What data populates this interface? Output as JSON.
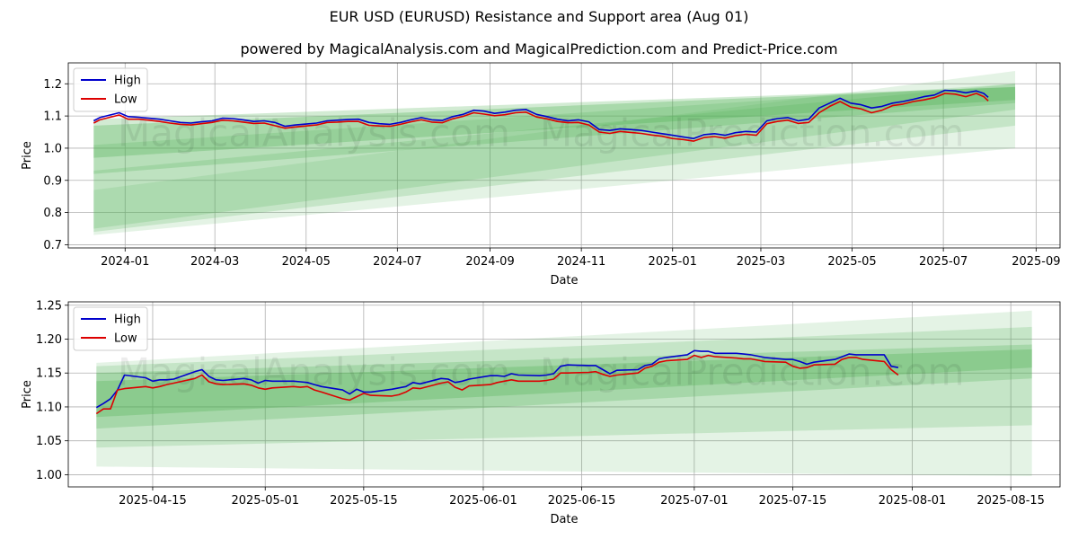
{
  "title": "EUR USD (EURUSD) Resistance and Support area (Aug 01)",
  "subtitle": "powered by MagicalAnalysis.com and MagicalPrediction.com and Predict-Price.com",
  "watermarks": [
    "MagicalAnalysis.com",
    "MagicalPrediction.com"
  ],
  "colors": {
    "high": "#0000cc",
    "low": "#dd0000",
    "band": "#4caf50",
    "grid": "#b0b0b0"
  },
  "chart_data": [
    {
      "type": "line",
      "xlabel": "Date",
      "ylabel": "Price",
      "xlim": [
        "2023-11-24",
        "2025-09-17"
      ],
      "ylim": [
        0.69,
        1.265
      ],
      "x_ticks": [
        "2024-01",
        "2024-03",
        "2024-05",
        "2024-07",
        "2024-09",
        "2024-11",
        "2025-01",
        "2025-03",
        "2025-05",
        "2025-07",
        "2025-09"
      ],
      "y_ticks": [
        "0.7",
        "0.8",
        "0.9",
        "1.0",
        "1.1",
        "1.2"
      ],
      "grid": true,
      "legend": "top-left",
      "legend_entries": [
        "High",
        "Low"
      ],
      "bands_start": "2023-12-11",
      "bands_end": "2025-08-18",
      "bands": [
        {
          "y0_low": 0.73,
          "y0_high": 0.87,
          "y1_low": 1.0,
          "y1_high": 1.24,
          "opacity": 0.15
        },
        {
          "y0_low": 0.74,
          "y0_high": 0.93,
          "y1_low": 1.07,
          "y1_high": 1.2,
          "opacity": 0.2
        },
        {
          "y0_low": 0.75,
          "y0_high": 1.01,
          "y1_low": 1.12,
          "y1_high": 1.2,
          "opacity": 0.2
        },
        {
          "y0_low": 0.92,
          "y0_high": 1.09,
          "y1_low": 1.14,
          "y1_high": 1.19,
          "opacity": 0.25
        },
        {
          "y0_low": 0.97,
          "y0_high": 1.07,
          "y1_low": 1.15,
          "y1_high": 1.19,
          "opacity": 0.3
        }
      ],
      "series": [
        {
          "name": "High",
          "x": [
            "2023-12-11",
            "2023-12-15",
            "2023-12-22",
            "2023-12-28",
            "2024-01-03",
            "2024-01-10",
            "2024-01-17",
            "2024-01-24",
            "2024-01-31",
            "2024-02-07",
            "2024-02-14",
            "2024-02-21",
            "2024-02-28",
            "2024-03-06",
            "2024-03-13",
            "2024-03-20",
            "2024-03-27",
            "2024-04-03",
            "2024-04-10",
            "2024-04-17",
            "2024-04-24",
            "2024-05-01",
            "2024-05-08",
            "2024-05-15",
            "2024-05-22",
            "2024-05-29",
            "2024-06-05",
            "2024-06-12",
            "2024-06-19",
            "2024-06-26",
            "2024-07-03",
            "2024-07-10",
            "2024-07-17",
            "2024-07-24",
            "2024-07-31",
            "2024-08-07",
            "2024-08-14",
            "2024-08-21",
            "2024-08-28",
            "2024-09-04",
            "2024-09-11",
            "2024-09-18",
            "2024-09-25",
            "2024-10-02",
            "2024-10-09",
            "2024-10-16",
            "2024-10-23",
            "2024-10-30",
            "2024-11-06",
            "2024-11-13",
            "2024-11-20",
            "2024-11-27",
            "2024-12-04",
            "2024-12-11",
            "2024-12-18",
            "2024-12-25",
            "2025-01-01",
            "2025-01-08",
            "2025-01-15",
            "2025-01-22",
            "2025-01-29",
            "2025-02-05",
            "2025-02-12",
            "2025-02-19",
            "2025-02-26",
            "2025-03-05",
            "2025-03-12",
            "2025-03-19",
            "2025-03-26",
            "2025-04-02",
            "2025-04-09",
            "2025-04-16",
            "2025-04-23",
            "2025-04-30",
            "2025-05-07",
            "2025-05-14",
            "2025-05-21",
            "2025-05-28",
            "2025-06-04",
            "2025-06-11",
            "2025-06-18",
            "2025-06-25",
            "2025-07-02",
            "2025-07-09",
            "2025-07-16",
            "2025-07-23",
            "2025-07-28",
            "2025-07-31"
          ],
          "values": [
            1.085,
            1.095,
            1.103,
            1.11,
            1.098,
            1.096,
            1.093,
            1.09,
            1.085,
            1.08,
            1.078,
            1.082,
            1.085,
            1.093,
            1.092,
            1.088,
            1.083,
            1.085,
            1.08,
            1.068,
            1.072,
            1.075,
            1.078,
            1.085,
            1.087,
            1.089,
            1.09,
            1.08,
            1.076,
            1.074,
            1.08,
            1.088,
            1.095,
            1.088,
            1.086,
            1.098,
            1.105,
            1.118,
            1.115,
            1.108,
            1.112,
            1.118,
            1.12,
            1.105,
            1.098,
            1.09,
            1.085,
            1.088,
            1.082,
            1.058,
            1.055,
            1.06,
            1.058,
            1.055,
            1.05,
            1.045,
            1.04,
            1.035,
            1.03,
            1.042,
            1.045,
            1.04,
            1.048,
            1.052,
            1.05,
            1.085,
            1.092,
            1.095,
            1.085,
            1.09,
            1.125,
            1.14,
            1.155,
            1.14,
            1.135,
            1.125,
            1.13,
            1.14,
            1.145,
            1.152,
            1.16,
            1.165,
            1.18,
            1.178,
            1.172,
            1.178,
            1.17,
            1.158
          ]
        },
        {
          "name": "Low",
          "x": [
            "2023-12-11",
            "2023-12-15",
            "2023-12-22",
            "2023-12-28",
            "2024-01-03",
            "2024-01-10",
            "2024-01-17",
            "2024-01-24",
            "2024-01-31",
            "2024-02-07",
            "2024-02-14",
            "2024-02-21",
            "2024-02-28",
            "2024-03-06",
            "2024-03-13",
            "2024-03-20",
            "2024-03-27",
            "2024-04-03",
            "2024-04-10",
            "2024-04-17",
            "2024-04-24",
            "2024-05-01",
            "2024-05-08",
            "2024-05-15",
            "2024-05-22",
            "2024-05-29",
            "2024-06-05",
            "2024-06-12",
            "2024-06-19",
            "2024-06-26",
            "2024-07-03",
            "2024-07-10",
            "2024-07-17",
            "2024-07-24",
            "2024-07-31",
            "2024-08-07",
            "2024-08-14",
            "2024-08-21",
            "2024-08-28",
            "2024-09-04",
            "2024-09-11",
            "2024-09-18",
            "2024-09-25",
            "2024-10-02",
            "2024-10-09",
            "2024-10-16",
            "2024-10-23",
            "2024-10-30",
            "2024-11-06",
            "2024-11-13",
            "2024-11-20",
            "2024-11-27",
            "2024-12-04",
            "2024-12-11",
            "2024-12-18",
            "2024-12-25",
            "2025-01-01",
            "2025-01-08",
            "2025-01-15",
            "2025-01-22",
            "2025-01-29",
            "2025-02-05",
            "2025-02-12",
            "2025-02-19",
            "2025-02-26",
            "2025-03-05",
            "2025-03-12",
            "2025-03-19",
            "2025-03-26",
            "2025-04-02",
            "2025-04-09",
            "2025-04-16",
            "2025-04-23",
            "2025-04-30",
            "2025-05-07",
            "2025-05-14",
            "2025-05-21",
            "2025-05-28",
            "2025-06-04",
            "2025-06-11",
            "2025-06-18",
            "2025-06-25",
            "2025-07-02",
            "2025-07-09",
            "2025-07-16",
            "2025-07-23",
            "2025-07-28",
            "2025-07-31"
          ],
          "values": [
            1.078,
            1.088,
            1.096,
            1.103,
            1.09,
            1.09,
            1.087,
            1.083,
            1.078,
            1.074,
            1.072,
            1.076,
            1.08,
            1.087,
            1.085,
            1.081,
            1.077,
            1.078,
            1.07,
            1.062,
            1.066,
            1.069,
            1.072,
            1.08,
            1.081,
            1.083,
            1.083,
            1.071,
            1.069,
            1.068,
            1.074,
            1.082,
            1.088,
            1.081,
            1.079,
            1.091,
            1.099,
            1.11,
            1.106,
            1.101,
            1.104,
            1.11,
            1.112,
            1.097,
            1.091,
            1.083,
            1.079,
            1.08,
            1.072,
            1.05,
            1.046,
            1.052,
            1.049,
            1.046,
            1.041,
            1.037,
            1.03,
            1.027,
            1.022,
            1.033,
            1.036,
            1.031,
            1.039,
            1.043,
            1.04,
            1.076,
            1.083,
            1.087,
            1.077,
            1.08,
            1.11,
            1.13,
            1.145,
            1.128,
            1.122,
            1.11,
            1.118,
            1.132,
            1.137,
            1.145,
            1.15,
            1.157,
            1.17,
            1.168,
            1.16,
            1.17,
            1.16,
            1.147
          ]
        }
      ]
    },
    {
      "type": "line",
      "xlabel": "Date",
      "ylabel": "Price",
      "xlim": [
        "2025-04-03",
        "2025-08-22"
      ],
      "ylim": [
        0.982,
        1.255
      ],
      "x_ticks": [
        "2025-04-15",
        "2025-05-01",
        "2025-05-15",
        "2025-06-01",
        "2025-06-15",
        "2025-07-01",
        "2025-07-15",
        "2025-08-01",
        "2025-08-15"
      ],
      "y_ticks": [
        "1.00",
        "1.05",
        "1.10",
        "1.15",
        "1.20",
        "1.25"
      ],
      "grid": true,
      "legend": "top-left",
      "legend_entries": [
        "High",
        "Low"
      ],
      "bands_start": "2025-04-07",
      "bands_end": "2025-08-18",
      "bands": [
        {
          "y0_low": 1.012,
          "y0_high": 1.165,
          "y1_low": 0.998,
          "y1_high": 1.242,
          "opacity": 0.15
        },
        {
          "y0_low": 1.04,
          "y0_high": 1.16,
          "y1_low": 1.073,
          "y1_high": 1.218,
          "opacity": 0.2
        },
        {
          "y0_low": 1.068,
          "y0_high": 1.15,
          "y1_low": 1.142,
          "y1_high": 1.192,
          "opacity": 0.25
        },
        {
          "y0_low": 1.085,
          "y0_high": 1.138,
          "y1_low": 1.158,
          "y1_high": 1.185,
          "opacity": 0.3
        }
      ],
      "series": [
        {
          "name": "High",
          "x": [
            "2025-04-07",
            "2025-04-08",
            "2025-04-09",
            "2025-04-10",
            "2025-04-11",
            "2025-04-14",
            "2025-04-15",
            "2025-04-16",
            "2025-04-17",
            "2025-04-18",
            "2025-04-21",
            "2025-04-22",
            "2025-04-23",
            "2025-04-24",
            "2025-04-25",
            "2025-04-28",
            "2025-04-29",
            "2025-04-30",
            "2025-05-01",
            "2025-05-02",
            "2025-05-05",
            "2025-05-06",
            "2025-05-07",
            "2025-05-08",
            "2025-05-09",
            "2025-05-12",
            "2025-05-13",
            "2025-05-14",
            "2025-05-15",
            "2025-05-16",
            "2025-05-19",
            "2025-05-20",
            "2025-05-21",
            "2025-05-22",
            "2025-05-23",
            "2025-05-26",
            "2025-05-27",
            "2025-05-28",
            "2025-05-29",
            "2025-05-30",
            "2025-06-02",
            "2025-06-03",
            "2025-06-04",
            "2025-06-05",
            "2025-06-06",
            "2025-06-09",
            "2025-06-10",
            "2025-06-11",
            "2025-06-12",
            "2025-06-13",
            "2025-06-16",
            "2025-06-17",
            "2025-06-18",
            "2025-06-19",
            "2025-06-20",
            "2025-06-23",
            "2025-06-24",
            "2025-06-25",
            "2025-06-26",
            "2025-06-27",
            "2025-06-30",
            "2025-07-01",
            "2025-07-02",
            "2025-07-03",
            "2025-07-04",
            "2025-07-07",
            "2025-07-08",
            "2025-07-09",
            "2025-07-10",
            "2025-07-11",
            "2025-07-14",
            "2025-07-15",
            "2025-07-16",
            "2025-07-17",
            "2025-07-18",
            "2025-07-21",
            "2025-07-22",
            "2025-07-23",
            "2025-07-24",
            "2025-07-25",
            "2025-07-28",
            "2025-07-29",
            "2025-07-30"
          ],
          "values": [
            1.099,
            1.105,
            1.112,
            1.125,
            1.147,
            1.143,
            1.138,
            1.14,
            1.14,
            1.141,
            1.152,
            1.155,
            1.145,
            1.14,
            1.139,
            1.142,
            1.14,
            1.135,
            1.139,
            1.138,
            1.138,
            1.137,
            1.136,
            1.133,
            1.13,
            1.125,
            1.119,
            1.126,
            1.122,
            1.122,
            1.126,
            1.128,
            1.13,
            1.136,
            1.134,
            1.142,
            1.141,
            1.136,
            1.138,
            1.141,
            1.146,
            1.146,
            1.145,
            1.149,
            1.147,
            1.146,
            1.147,
            1.149,
            1.16,
            1.162,
            1.161,
            1.161,
            1.155,
            1.149,
            1.154,
            1.155,
            1.161,
            1.163,
            1.171,
            1.173,
            1.177,
            1.183,
            1.182,
            1.182,
            1.179,
            1.179,
            1.178,
            1.177,
            1.175,
            1.173,
            1.17,
            1.17,
            1.167,
            1.163,
            1.166,
            1.17,
            1.174,
            1.178,
            1.177,
            1.177,
            1.177,
            1.16,
            1.158
          ]
        },
        {
          "name": "Low",
          "x": [
            "2025-04-07",
            "2025-04-08",
            "2025-04-09",
            "2025-04-10",
            "2025-04-11",
            "2025-04-14",
            "2025-04-15",
            "2025-04-16",
            "2025-04-17",
            "2025-04-18",
            "2025-04-21",
            "2025-04-22",
            "2025-04-23",
            "2025-04-24",
            "2025-04-25",
            "2025-04-28",
            "2025-04-29",
            "2025-04-30",
            "2025-05-01",
            "2025-05-02",
            "2025-05-05",
            "2025-05-06",
            "2025-05-07",
            "2025-05-08",
            "2025-05-09",
            "2025-05-12",
            "2025-05-13",
            "2025-05-14",
            "2025-05-15",
            "2025-05-16",
            "2025-05-19",
            "2025-05-20",
            "2025-05-21",
            "2025-05-22",
            "2025-05-23",
            "2025-05-26",
            "2025-05-27",
            "2025-05-28",
            "2025-05-29",
            "2025-05-30",
            "2025-06-02",
            "2025-06-03",
            "2025-06-04",
            "2025-06-05",
            "2025-06-06",
            "2025-06-09",
            "2025-06-10",
            "2025-06-11",
            "2025-06-12",
            "2025-06-13",
            "2025-06-16",
            "2025-06-17",
            "2025-06-18",
            "2025-06-19",
            "2025-06-20",
            "2025-06-23",
            "2025-06-24",
            "2025-06-25",
            "2025-06-26",
            "2025-06-27",
            "2025-06-30",
            "2025-07-01",
            "2025-07-02",
            "2025-07-03",
            "2025-07-04",
            "2025-07-07",
            "2025-07-08",
            "2025-07-09",
            "2025-07-10",
            "2025-07-11",
            "2025-07-14",
            "2025-07-15",
            "2025-07-16",
            "2025-07-17",
            "2025-07-18",
            "2025-07-21",
            "2025-07-22",
            "2025-07-23",
            "2025-07-24",
            "2025-07-25",
            "2025-07-28",
            "2025-07-29",
            "2025-07-30"
          ],
          "values": [
            1.09,
            1.097,
            1.097,
            1.125,
            1.127,
            1.13,
            1.128,
            1.13,
            1.133,
            1.135,
            1.142,
            1.147,
            1.137,
            1.134,
            1.133,
            1.134,
            1.132,
            1.128,
            1.126,
            1.128,
            1.13,
            1.129,
            1.13,
            1.125,
            1.122,
            1.112,
            1.11,
            1.115,
            1.12,
            1.117,
            1.116,
            1.118,
            1.122,
            1.128,
            1.127,
            1.135,
            1.137,
            1.129,
            1.125,
            1.131,
            1.133,
            1.136,
            1.138,
            1.14,
            1.138,
            1.138,
            1.139,
            1.141,
            1.15,
            1.15,
            1.151,
            1.152,
            1.148,
            1.145,
            1.147,
            1.15,
            1.157,
            1.16,
            1.166,
            1.168,
            1.17,
            1.176,
            1.173,
            1.176,
            1.174,
            1.172,
            1.171,
            1.171,
            1.169,
            1.167,
            1.166,
            1.16,
            1.157,
            1.158,
            1.162,
            1.163,
            1.17,
            1.173,
            1.173,
            1.17,
            1.167,
            1.155,
            1.147
          ]
        }
      ]
    }
  ]
}
